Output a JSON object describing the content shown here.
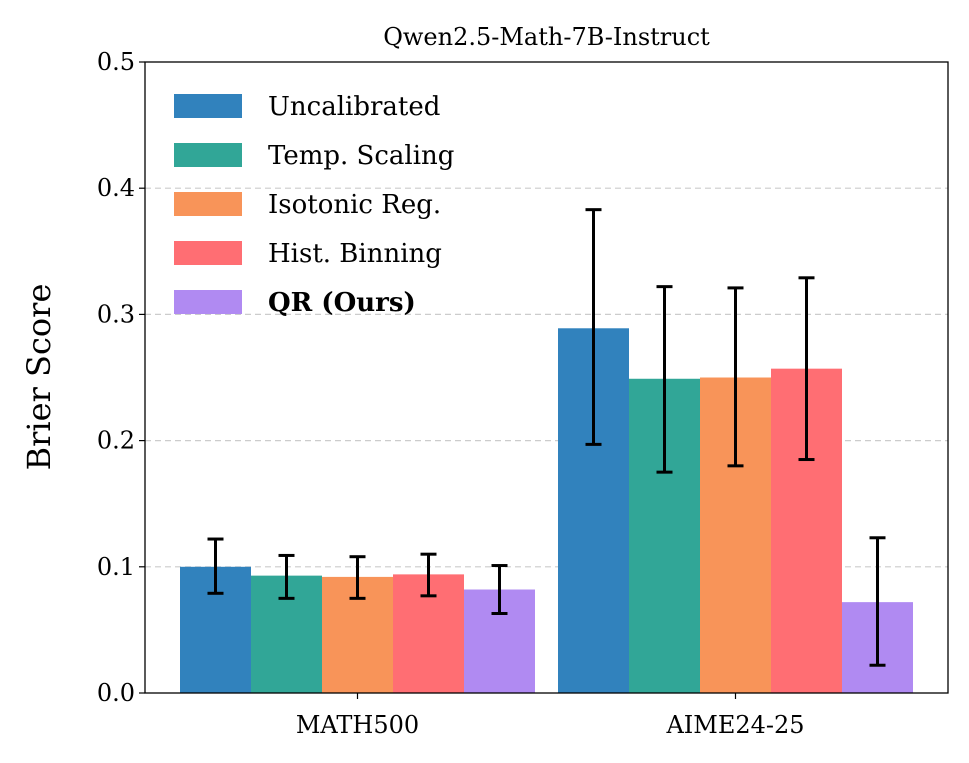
{
  "chart_data": {
    "type": "bar",
    "title": "Qwen2.5-Math-7B-Instruct",
    "xlabel": "",
    "ylabel": "Brier Score",
    "ylim": [
      0,
      0.5
    ],
    "yticks": [
      "0.0",
      "0.1",
      "0.2",
      "0.3",
      "0.4",
      "0.5"
    ],
    "grid": "y dashed",
    "legend_placement": "top-left",
    "categories": [
      "MATH500",
      "AIME24-25"
    ],
    "series": [
      {
        "name": "Uncalibrated",
        "color": "#3182bd",
        "values": [
          0.1,
          0.289
        ],
        "err_low": [
          0.079,
          0.197
        ],
        "err_high": [
          0.122,
          0.383
        ],
        "bold": false
      },
      {
        "name": "Temp. Scaling",
        "color": "#31a697",
        "values": [
          0.093,
          0.249
        ],
        "err_low": [
          0.075,
          0.175
        ],
        "err_high": [
          0.109,
          0.322
        ],
        "bold": false
      },
      {
        "name": "Isotonic Reg.",
        "color": "#f89459",
        "values": [
          0.092,
          0.25
        ],
        "err_low": [
          0.075,
          0.18
        ],
        "err_high": [
          0.108,
          0.321
        ],
        "bold": false
      },
      {
        "name": "Hist. Binning",
        "color": "#ff6e73",
        "values": [
          0.094,
          0.257
        ],
        "err_low": [
          0.077,
          0.185
        ],
        "err_high": [
          0.11,
          0.329
        ],
        "bold": false
      },
      {
        "name": "QR (Ours)",
        "color": "#b08af2",
        "values": [
          0.082,
          0.072
        ],
        "err_low": [
          0.063,
          0.022
        ],
        "err_high": [
          0.101,
          0.123
        ],
        "bold": true
      }
    ]
  }
}
